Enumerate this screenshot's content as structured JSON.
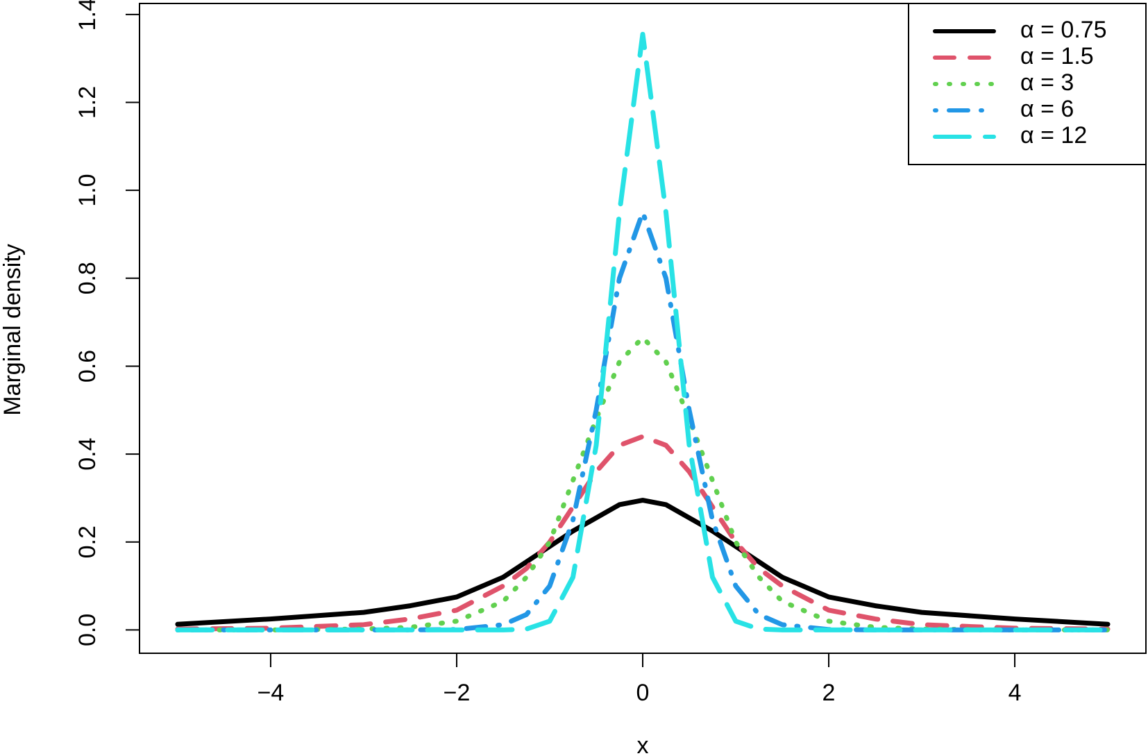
{
  "chart_data": {
    "type": "line",
    "x_label": "x",
    "y_label": "Marginal density",
    "x": [
      -5,
      -4,
      -3,
      -2.5,
      -2,
      -1.5,
      -1.25,
      -1,
      -0.75,
      -0.5,
      -0.25,
      0,
      0.25,
      0.5,
      0.75,
      1,
      1.25,
      1.5,
      2,
      2.5,
      3,
      4,
      5
    ],
    "series": [
      {
        "name": "α = 0.75",
        "color": "#000000",
        "linestyle": "solid",
        "values": [
          0.013,
          0.025,
          0.04,
          0.055,
          0.075,
          0.12,
          0.155,
          0.19,
          0.225,
          0.255,
          0.285,
          0.295,
          0.285,
          0.255,
          0.225,
          0.19,
          0.155,
          0.12,
          0.075,
          0.055,
          0.04,
          0.025,
          0.013
        ]
      },
      {
        "name": "α = 1.5",
        "color": "#df536b",
        "linestyle": "dashed",
        "values": [
          0.002,
          0.004,
          0.012,
          0.025,
          0.045,
          0.1,
          0.14,
          0.2,
          0.28,
          0.36,
          0.42,
          0.44,
          0.42,
          0.36,
          0.28,
          0.2,
          0.14,
          0.1,
          0.045,
          0.025,
          0.012,
          0.004,
          0.002
        ]
      },
      {
        "name": "α = 3",
        "color": "#61d04f",
        "linestyle": "dotted",
        "values": [
          0,
          0,
          0.002,
          0.006,
          0.02,
          0.065,
          0.12,
          0.2,
          0.34,
          0.48,
          0.61,
          0.665,
          0.61,
          0.48,
          0.34,
          0.2,
          0.12,
          0.065,
          0.02,
          0.006,
          0.002,
          0,
          0
        ]
      },
      {
        "name": "α = 6",
        "color": "#2297e6",
        "linestyle": "dotdash",
        "values": [
          0,
          0,
          0,
          0,
          0.001,
          0.012,
          0.035,
          0.1,
          0.25,
          0.5,
          0.8,
          0.95,
          0.8,
          0.5,
          0.25,
          0.1,
          0.035,
          0.012,
          0.001,
          0,
          0,
          0,
          0
        ]
      },
      {
        "name": "α = 12",
        "color": "#28e2e5",
        "linestyle": "longdash",
        "values": [
          0,
          0,
          0,
          0,
          0,
          0,
          0.002,
          0.02,
          0.12,
          0.42,
          0.95,
          1.355,
          0.95,
          0.42,
          0.12,
          0.02,
          0.002,
          0,
          0,
          0,
          0,
          0,
          0
        ]
      }
    ],
    "xlim": [
      -5.41,
      5.41
    ],
    "ylim": [
      -0.053,
      1.425
    ],
    "xticks": [
      {
        "value": -4,
        "label": "−4"
      },
      {
        "value": -2,
        "label": "−2"
      },
      0,
      2,
      4
    ],
    "yticks": [
      {
        "value": 0,
        "label": "0.0"
      },
      0.2,
      0.4,
      0.6,
      0.8,
      {
        "value": 1,
        "label": "1.0"
      },
      1.2,
      1.4
    ],
    "legend": "top-right"
  }
}
